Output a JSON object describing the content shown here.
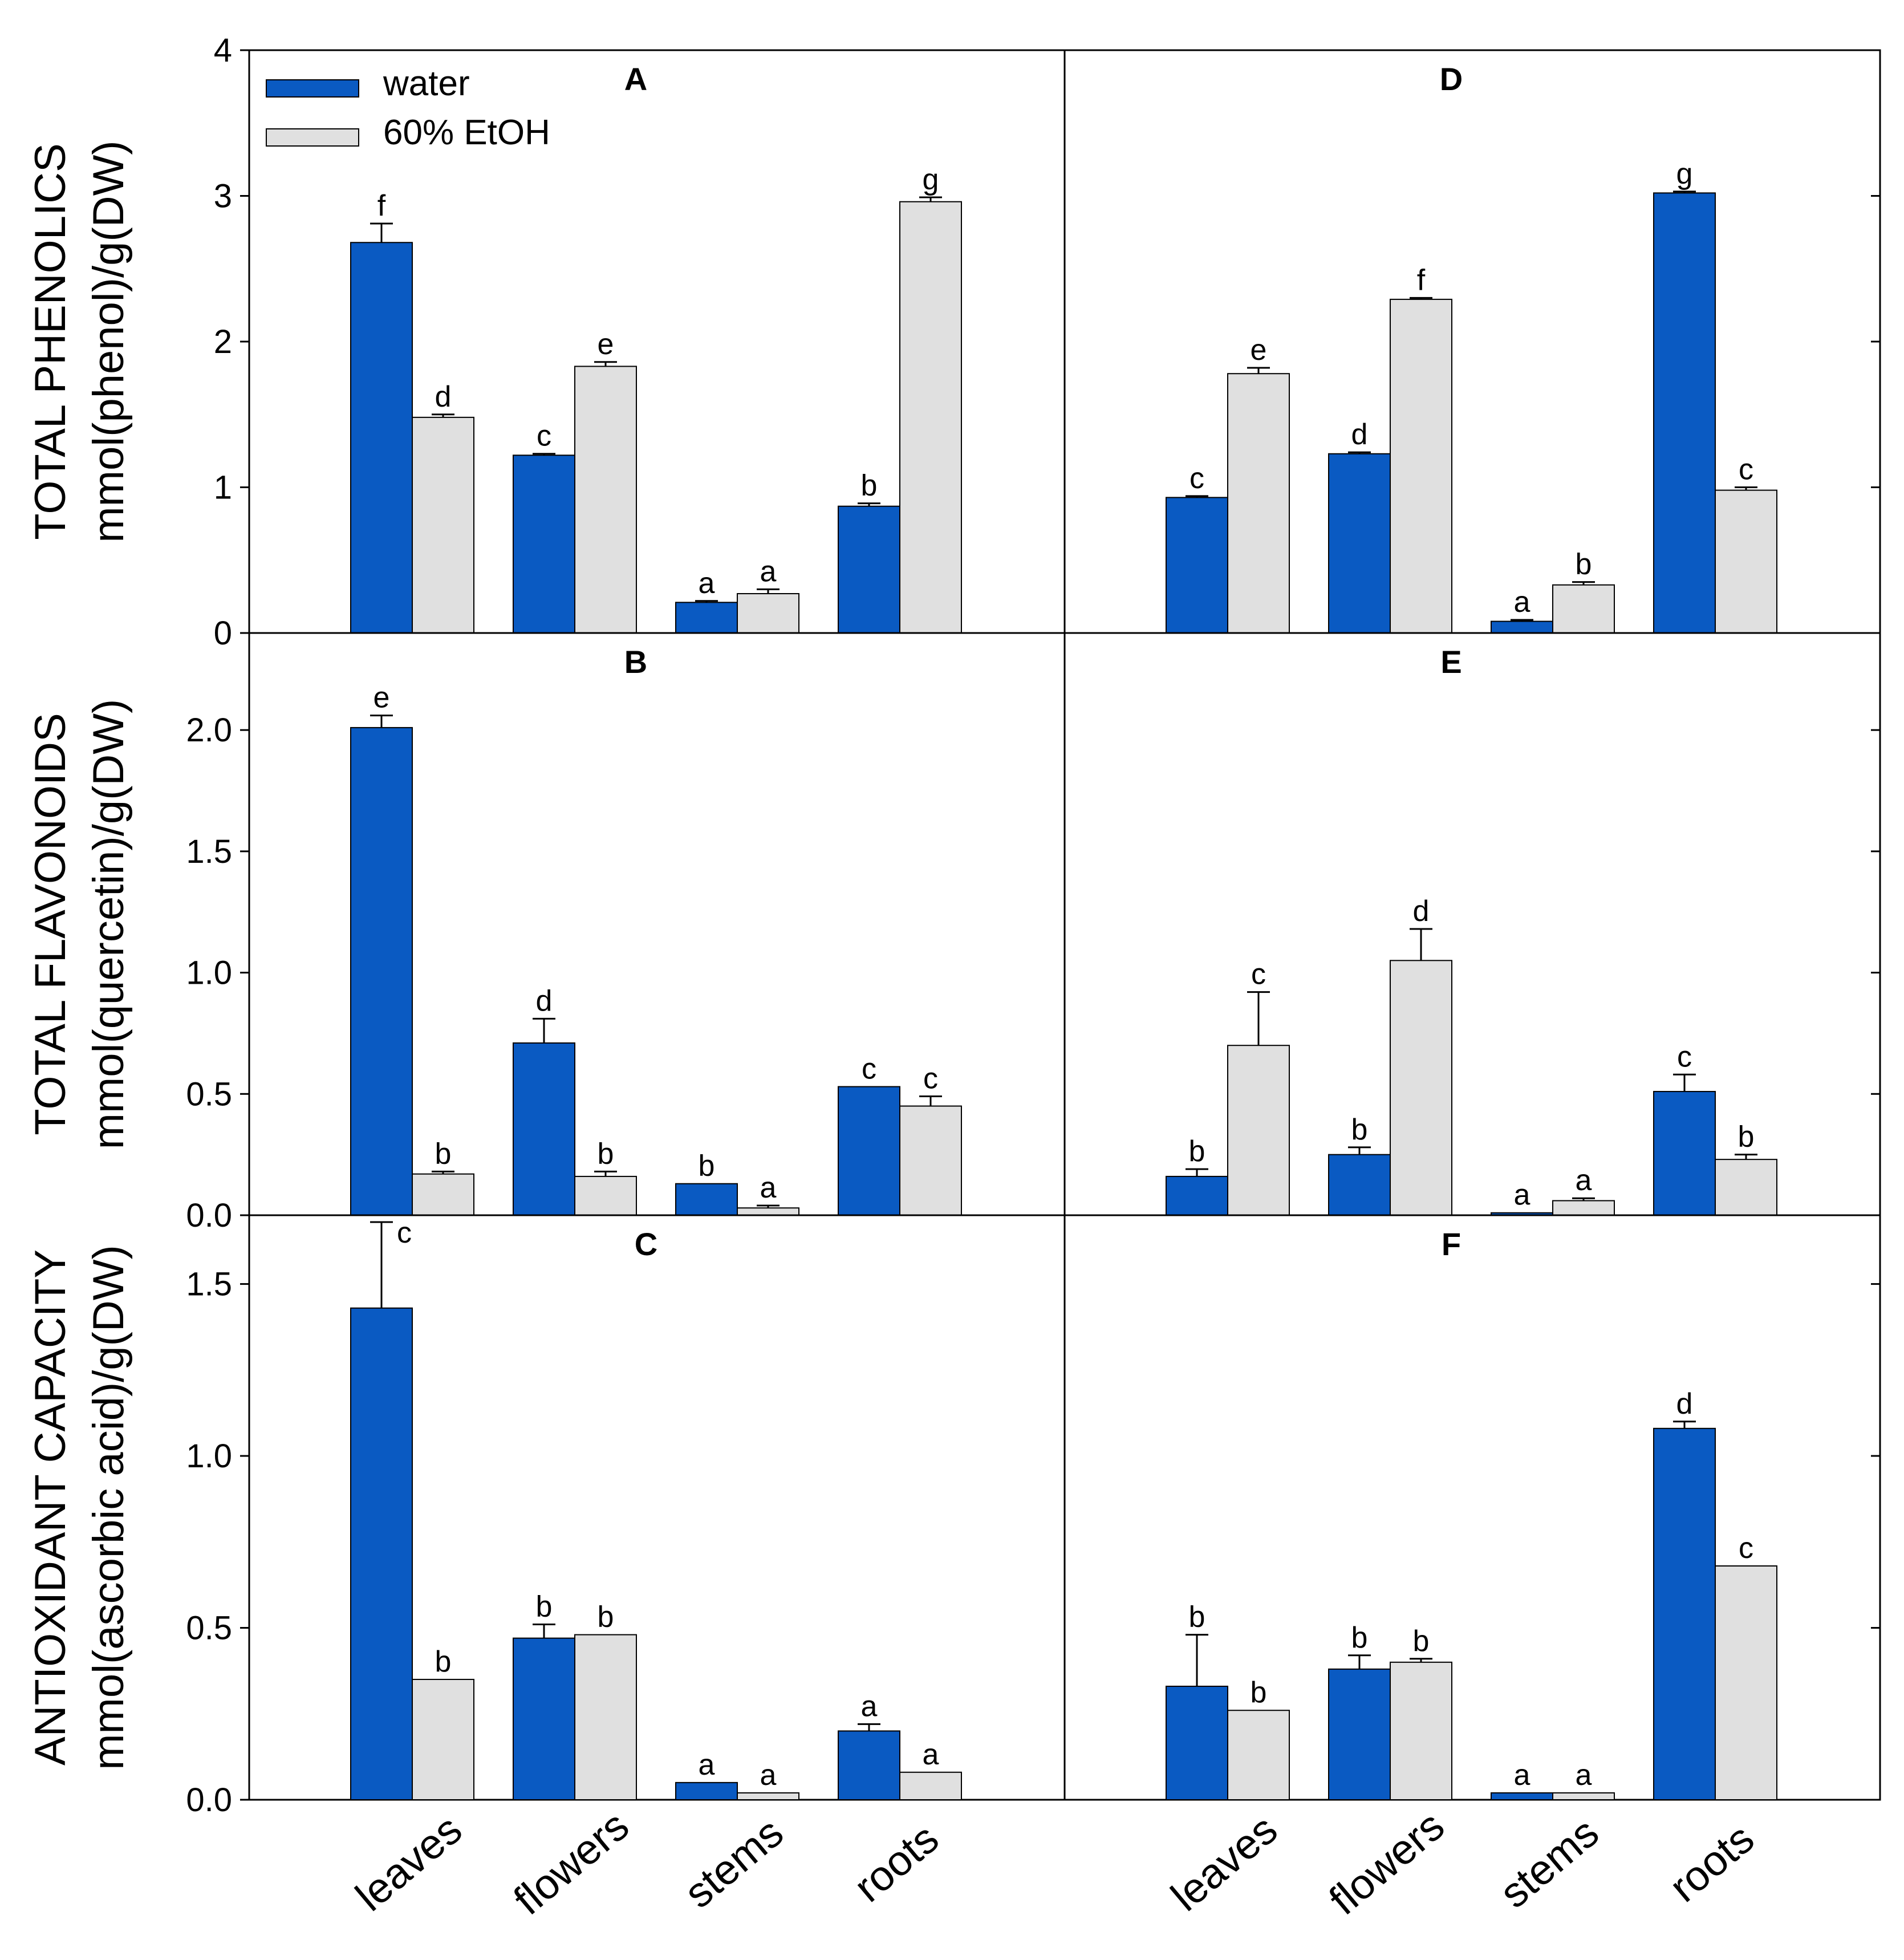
{
  "chart_data": {
    "type": "bar",
    "categories": [
      "leaves",
      "flowers",
      "stems",
      "roots"
    ],
    "legend": [
      {
        "name": "water",
        "color": "#0a5ac2"
      },
      {
        "name": "60% EtOH",
        "color": "#e0e0e0"
      }
    ],
    "rows": [
      {
        "ylabel": "TOTAL PHENOLICS",
        "ylabel2": "mmol(phenol)/g(DW)",
        "ylim": [
          0,
          4
        ],
        "ticks": [
          "0",
          "1",
          "2",
          "3",
          "4"
        ],
        "tick_values": [
          0,
          1,
          2,
          3,
          4
        ]
      },
      {
        "ylabel": "TOTAL FLAVONOIDS",
        "ylabel2": "mmol(quercetin)/g(DW)",
        "ylim": [
          0,
          2.4
        ],
        "ticks": [
          "0.0",
          "0.5",
          "1.0",
          "1.5",
          "2.0"
        ],
        "tick_values": [
          0,
          0.5,
          1.0,
          1.5,
          2.0
        ]
      },
      {
        "ylabel": "ANTIOXIDANT CAPACITY",
        "ylabel2": "mmol(ascorbic acid)/g(DW)",
        "ylim": [
          0,
          1.7
        ],
        "ticks": [
          "0.0",
          "0.5",
          "1.0",
          "1.5"
        ],
        "tick_values": [
          0,
          0.5,
          1.0,
          1.5
        ]
      }
    ],
    "panels": [
      {
        "label": "A",
        "row": 0,
        "col": 0,
        "series": [
          {
            "name": "water",
            "values": [
              2.68,
              1.22,
              0.21,
              0.87
            ],
            "errors": [
              0.13,
              0.01,
              0.01,
              0.02
            ],
            "letters": [
              "f",
              "c",
              "a",
              "b"
            ]
          },
          {
            "name": "60% EtOH",
            "values": [
              1.48,
              1.83,
              0.27,
              2.96
            ],
            "errors": [
              0.02,
              0.03,
              0.03,
              0.03
            ],
            "letters": [
              "d",
              "e",
              "a",
              "g"
            ]
          }
        ]
      },
      {
        "label": "D",
        "row": 0,
        "col": 1,
        "series": [
          {
            "name": "water",
            "values": [
              0.93,
              1.23,
              0.08,
              3.02
            ],
            "errors": [
              0.01,
              0.01,
              0.01,
              0.01
            ],
            "letters": [
              "c",
              "d",
              "a",
              "g"
            ]
          },
          {
            "name": "60% EtOH",
            "values": [
              1.78,
              2.29,
              0.33,
              0.98
            ],
            "errors": [
              0.04,
              0.01,
              0.02,
              0.02
            ],
            "letters": [
              "e",
              "f",
              "b",
              "c"
            ]
          }
        ]
      },
      {
        "label": "B",
        "row": 1,
        "col": 0,
        "series": [
          {
            "name": "water",
            "values": [
              2.01,
              0.71,
              0.13,
              0.53
            ],
            "errors": [
              0.05,
              0.1,
              0.0,
              0.0
            ],
            "letters": [
              "e",
              "d",
              "b",
              "c"
            ]
          },
          {
            "name": "60% EtOH",
            "values": [
              0.17,
              0.16,
              0.03,
              0.45
            ],
            "errors": [
              0.01,
              0.02,
              0.01,
              0.04
            ],
            "letters": [
              "b",
              "b",
              "a",
              "c"
            ]
          }
        ]
      },
      {
        "label": "E",
        "row": 1,
        "col": 1,
        "series": [
          {
            "name": "water",
            "values": [
              0.16,
              0.25,
              0.01,
              0.51
            ],
            "errors": [
              0.03,
              0.03,
              0.0,
              0.07
            ],
            "letters": [
              "b",
              "b",
              "a",
              "c"
            ]
          },
          {
            "name": "60% EtOH",
            "values": [
              0.7,
              1.05,
              0.06,
              0.23
            ],
            "errors": [
              0.22,
              0.13,
              0.01,
              0.02
            ],
            "letters": [
              "c",
              "d",
              "a",
              "b"
            ]
          }
        ]
      },
      {
        "label": "C",
        "row": 2,
        "col": 0,
        "series": [
          {
            "name": "water",
            "values": [
              1.43,
              0.47,
              0.05,
              0.2
            ],
            "errors": [
              0.25,
              0.04,
              0.0,
              0.02
            ],
            "letters": [
              "c",
              "b",
              "a",
              "a"
            ]
          },
          {
            "name": "60% EtOH",
            "values": [
              0.35,
              0.48,
              0.02,
              0.08
            ],
            "errors": [
              0.0,
              0.0,
              0.0,
              0.0
            ],
            "letters": [
              "b",
              "b",
              "a",
              "a"
            ]
          }
        ]
      },
      {
        "label": "F",
        "row": 2,
        "col": 1,
        "series": [
          {
            "name": "water",
            "values": [
              0.33,
              0.38,
              0.02,
              1.08
            ],
            "errors": [
              0.15,
              0.04,
              0.0,
              0.02
            ],
            "letters": [
              "b",
              "b",
              "a",
              "d"
            ]
          },
          {
            "name": "60% EtOH",
            "values": [
              0.26,
              0.4,
              0.02,
              0.68
            ],
            "errors": [
              0.0,
              0.01,
              0.0,
              0.0
            ],
            "letters": [
              "b",
              "b",
              "a",
              "c"
            ]
          }
        ]
      }
    ]
  }
}
